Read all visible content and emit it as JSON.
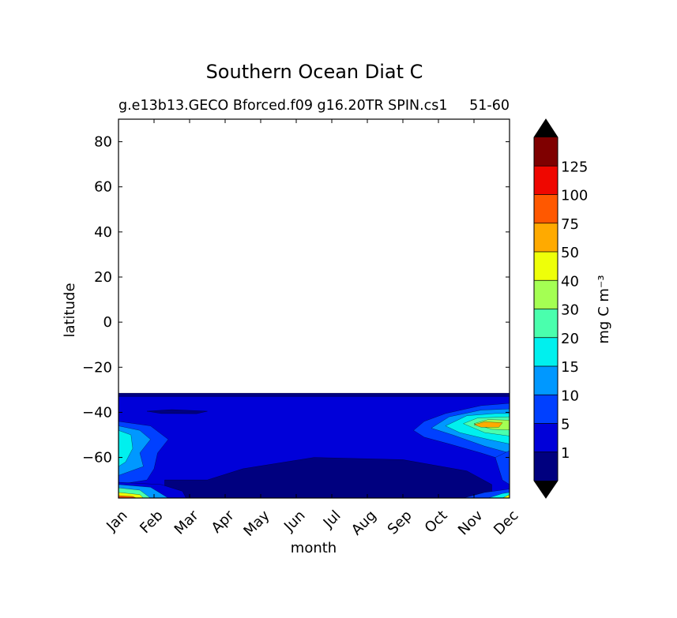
{
  "chart_data": {
    "type": "contourf",
    "title": "Southern Ocean Diat C",
    "subtitle_left": "g.e13b13.GECO Bforced.f09 g16.20TR SPIN.cs1",
    "subtitle_right": "51-60",
    "xlabel": "month",
    "ylabel": "latitude",
    "x_ticklabels": [
      "Jan",
      "Feb",
      "Mar",
      "Apr",
      "May",
      "Jun",
      "Jul",
      "Aug",
      "Sep",
      "Oct",
      "Nov",
      "Dec"
    ],
    "xlim": [
      0,
      11
    ],
    "ylim": [
      -78,
      90
    ],
    "y_ticks": [
      80,
      60,
      40,
      20,
      0,
      -20,
      -40,
      -60
    ],
    "y_ticklabels": [
      "80",
      "60",
      "40",
      "20",
      "0",
      "−20",
      "−40",
      "−60"
    ],
    "data_lat_range": [
      -78,
      -31.5
    ],
    "colorbar": {
      "label": "mg C m⁻³",
      "extend": "both",
      "boundaries": [
        0,
        1,
        5,
        10,
        15,
        20,
        30,
        40,
        50,
        75,
        100,
        125,
        150
      ],
      "ticklabels": [
        "1",
        "5",
        "10",
        "15",
        "20",
        "30",
        "40",
        "50",
        "75",
        "100",
        "125"
      ],
      "colors": [
        "#00007f",
        "#0000d9",
        "#0040ff",
        "#0098ff",
        "#00f0ee",
        "#4affad",
        "#a4ff53",
        "#eeff09",
        "#ffaa00",
        "#ff5800",
        "#ef0700",
        "#7f0000"
      ],
      "under_color": "#000000",
      "over_color": "#000000"
    },
    "regions": [
      {
        "level": 0,
        "desc": "deep Antarctic region, austral winter",
        "polygon": [
          [
            1.3,
            -78
          ],
          [
            1.3,
            -70
          ],
          [
            2.5,
            -70
          ],
          [
            3.5,
            -65
          ],
          [
            5.5,
            -60
          ],
          [
            8,
            -61
          ],
          [
            9.8,
            -66
          ],
          [
            10.5,
            -72
          ],
          [
            10.5,
            -78
          ]
        ]
      },
      {
        "level": 0,
        "desc": "strip near -40 in Feb",
        "polygon": [
          [
            0.8,
            -39.5
          ],
          [
            1.5,
            -38.8
          ],
          [
            2.5,
            -39.5
          ],
          [
            2.2,
            -40.6
          ],
          [
            1.2,
            -40.5
          ]
        ]
      },
      {
        "level": 0,
        "desc": "northern edge band",
        "polygon": [
          [
            0,
            -33
          ],
          [
            11,
            -33
          ],
          [
            11,
            -31.5
          ],
          [
            0,
            -31.5
          ]
        ]
      },
      {
        "level": 2,
        "polygon": [
          [
            0,
            -44
          ],
          [
            0.9,
            -46
          ],
          [
            1.4,
            -52
          ],
          [
            1.1,
            -58
          ],
          [
            1.0,
            -65
          ],
          [
            0.8,
            -70
          ],
          [
            0,
            -72
          ]
        ]
      },
      {
        "level": 3,
        "polygon": [
          [
            0,
            -46
          ],
          [
            0.6,
            -48
          ],
          [
            0.9,
            -52
          ],
          [
            0.6,
            -58
          ],
          [
            0.7,
            -64
          ],
          [
            0,
            -68
          ]
        ]
      },
      {
        "level": 4,
        "polygon": [
          [
            0,
            -48
          ],
          [
            0.35,
            -50
          ],
          [
            0.4,
            -56
          ],
          [
            0.2,
            -62
          ],
          [
            0,
            -64
          ]
        ]
      },
      {
        "level": 1,
        "desc": "Jan-Feb polar enhancement",
        "polygon": [
          [
            0,
            -71
          ],
          [
            1.2,
            -72
          ],
          [
            1.8,
            -75
          ],
          [
            1.9,
            -78
          ],
          [
            0,
            -78
          ]
        ]
      },
      {
        "level": 3,
        "polygon": [
          [
            0,
            -72
          ],
          [
            0.9,
            -73.2
          ],
          [
            1.4,
            -78
          ],
          [
            0,
            -78
          ]
        ]
      },
      {
        "level": 5,
        "polygon": [
          [
            0,
            -73.5
          ],
          [
            0.6,
            -74.5
          ],
          [
            0.9,
            -78
          ],
          [
            0,
            -78
          ]
        ]
      },
      {
        "level": 7,
        "polygon": [
          [
            0,
            -75.5
          ],
          [
            0.6,
            -76.5
          ],
          [
            0.7,
            -78
          ],
          [
            0,
            -78
          ]
        ]
      },
      {
        "level": 9,
        "polygon": [
          [
            0,
            -77
          ],
          [
            0.4,
            -77.3
          ],
          [
            0.5,
            -78
          ],
          [
            0,
            -78
          ]
        ]
      },
      {
        "level": 2,
        "desc": "Oct-Dec bloom",
        "polygon": [
          [
            8.3,
            -48
          ],
          [
            8.6,
            -44
          ],
          [
            9.2,
            -40.5
          ],
          [
            10.2,
            -37
          ],
          [
            11,
            -36
          ],
          [
            11,
            -62
          ],
          [
            10.2,
            -58
          ],
          [
            9.3,
            -54
          ],
          [
            8.6,
            -51
          ]
        ]
      },
      {
        "level": 3,
        "polygon": [
          [
            8.8,
            -47
          ],
          [
            9.3,
            -42
          ],
          [
            10.2,
            -39
          ],
          [
            11,
            -38.5
          ],
          [
            11,
            -58
          ],
          [
            10.3,
            -55
          ],
          [
            9.4,
            -50
          ]
        ]
      },
      {
        "level": 4,
        "polygon": [
          [
            9.2,
            -46
          ],
          [
            9.8,
            -41.5
          ],
          [
            10.6,
            -40.5
          ],
          [
            11,
            -40.5
          ],
          [
            11,
            -54
          ],
          [
            10.4,
            -52
          ],
          [
            9.6,
            -49
          ]
        ]
      },
      {
        "level": 5,
        "polygon": [
          [
            9.7,
            -45
          ],
          [
            10.1,
            -42.5
          ],
          [
            11,
            -42
          ],
          [
            11,
            -50.5
          ],
          [
            10.3,
            -49
          ]
        ]
      },
      {
        "level": 6,
        "polygon": [
          [
            10.0,
            -45
          ],
          [
            10.4,
            -43.2
          ],
          [
            11,
            -43.5
          ],
          [
            11,
            -47.8
          ],
          [
            10.5,
            -47.5
          ]
        ]
      },
      {
        "level": 8,
        "polygon": [
          [
            10.0,
            -45.5
          ],
          [
            10.3,
            -44.2
          ],
          [
            10.8,
            -44.6
          ],
          [
            10.7,
            -46.6
          ],
          [
            10.2,
            -46.6
          ]
        ]
      },
      {
        "level": 2,
        "desc": "Dec southern bloom",
        "polygon": [
          [
            9.7,
            -78
          ],
          [
            10.3,
            -75.5
          ],
          [
            11,
            -74
          ],
          [
            11,
            -78
          ]
        ]
      },
      {
        "level": 2,
        "polygon": [
          [
            10.6,
            -60
          ],
          [
            11,
            -57
          ],
          [
            11,
            -72
          ],
          [
            10.8,
            -70
          ]
        ]
      },
      {
        "level": 4,
        "polygon": [
          [
            10.4,
            -78
          ],
          [
            10.8,
            -76
          ],
          [
            11,
            -75.5
          ],
          [
            11,
            -78
          ]
        ]
      },
      {
        "level": 7,
        "polygon": [
          [
            10.8,
            -78
          ],
          [
            11,
            -76.5
          ],
          [
            11,
            -78
          ]
        ]
      }
    ]
  }
}
